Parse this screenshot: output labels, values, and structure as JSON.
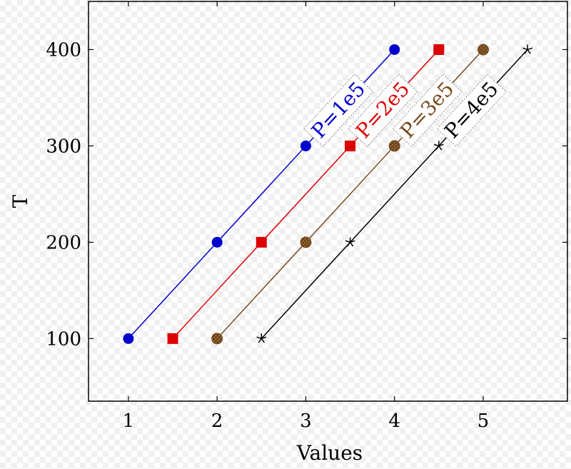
{
  "chart_data": {
    "type": "line",
    "title": "",
    "xlabel": "Values",
    "ylabel": "T",
    "xlim": [
      0.55,
      5.95
    ],
    "ylim": [
      35,
      450
    ],
    "xticks": [
      1,
      2,
      3,
      4,
      5
    ],
    "yticks": [
      100,
      200,
      300,
      400
    ],
    "grid": false,
    "series": [
      {
        "name": "P=1e5",
        "color": "#0000cc",
        "marker": "circle",
        "x": [
          1,
          2,
          3,
          4
        ],
        "y": [
          100,
          200,
          300,
          400
        ]
      },
      {
        "name": "P=2e5",
        "color": "#dd0000",
        "marker": "square",
        "x": [
          1.5,
          2.5,
          3.5,
          4.5
        ],
        "y": [
          100,
          200,
          300,
          400
        ]
      },
      {
        "name": "P=3e5",
        "color": "#7a4a1e",
        "marker": "hatched-circle",
        "x": [
          2,
          3,
          4,
          5
        ],
        "y": [
          100,
          200,
          300,
          400
        ]
      },
      {
        "name": "P=4e5",
        "color": "#000000",
        "marker": "star",
        "x": [
          2.5,
          3.5,
          4.5,
          5.5
        ],
        "y": [
          100,
          200,
          300,
          400
        ]
      }
    ]
  }
}
